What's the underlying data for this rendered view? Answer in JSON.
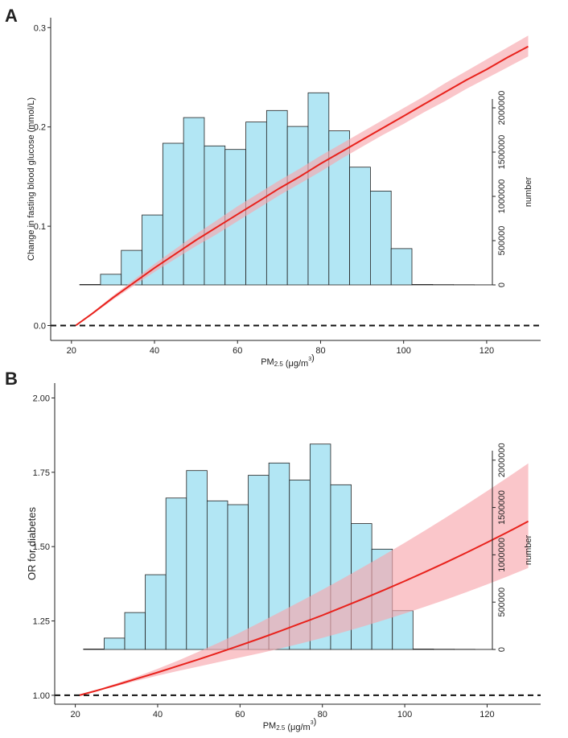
{
  "chart_data": [
    {
      "panel": "A",
      "type": "line",
      "overlay_type": "bar",
      "xlabel_main": "PM",
      "xlabel_sub": "2.5",
      "xlabel_unit": " (μg/m",
      "xlabel_sup": "3",
      "xlabel_close": ")",
      "ylabel": "Change in fasting blood glucose (mmol/L)",
      "y2label": "number",
      "xlim": [
        15,
        133
      ],
      "ylim": [
        -0.015,
        0.31
      ],
      "xticks": [
        "20",
        "40",
        "60",
        "80",
        "100",
        "120"
      ],
      "yticks": [
        "0.0",
        "0.1",
        "0.2",
        "0.3"
      ],
      "reference_line": 0,
      "line_color": "#e8221c",
      "band_color": "#f7a8ad",
      "curve_x": [
        21,
        25,
        30,
        35,
        40,
        45,
        50,
        55,
        60,
        65,
        70,
        75,
        80,
        85,
        90,
        95,
        100,
        105,
        110,
        115,
        120,
        125,
        130
      ],
      "curve_y": [
        0.0,
        0.012,
        0.028,
        0.043,
        0.058,
        0.072,
        0.086,
        0.099,
        0.112,
        0.125,
        0.138,
        0.15,
        0.163,
        0.175,
        0.187,
        0.199,
        0.211,
        0.223,
        0.235,
        0.247,
        0.258,
        0.27,
        0.281
      ],
      "curve_lo": [
        0.0,
        0.011,
        0.026,
        0.04,
        0.054,
        0.067,
        0.08,
        0.092,
        0.105,
        0.118,
        0.131,
        0.143,
        0.155,
        0.168,
        0.18,
        0.192,
        0.203,
        0.215,
        0.226,
        0.238,
        0.249,
        0.26,
        0.271
      ],
      "curve_hi": [
        0.0,
        0.013,
        0.03,
        0.046,
        0.062,
        0.077,
        0.092,
        0.106,
        0.12,
        0.133,
        0.146,
        0.158,
        0.171,
        0.183,
        0.195,
        0.207,
        0.219,
        0.231,
        0.244,
        0.256,
        0.268,
        0.28,
        0.292
      ],
      "histogram": {
        "bin_edges": [
          22,
          27,
          32,
          37,
          42,
          47,
          52,
          57,
          62,
          67,
          72,
          77,
          82,
          87,
          92,
          97,
          102,
          107,
          112,
          117,
          122
        ],
        "counts": [
          5000,
          120000,
          390000,
          790000,
          1600000,
          1890000,
          1570000,
          1530000,
          1840000,
          1970000,
          1790000,
          2170000,
          1740000,
          1330000,
          1060000,
          410000,
          5000,
          3000,
          2000,
          1000
        ],
        "y2lim": [
          0,
          2100000
        ],
        "y2ticks": [
          "0",
          "500000",
          "1000000",
          "1500000",
          "2000000"
        ],
        "fill_color": "#b2e6f4"
      }
    },
    {
      "panel": "B",
      "type": "line",
      "overlay_type": "bar",
      "xlabel_main": "PM",
      "xlabel_sub": "2.5",
      "xlabel_unit": " (μg/m",
      "xlabel_sup": "3",
      "xlabel_close": ")",
      "ylabel": "OR for diabetes",
      "y2label": "number",
      "xlim": [
        15,
        133
      ],
      "ylim": [
        0.97,
        2.05
      ],
      "xticks": [
        "20",
        "40",
        "60",
        "80",
        "100",
        "120"
      ],
      "yticks": [
        "1.00",
        "1.25",
        "1.50",
        "1.75",
        "2.00"
      ],
      "reference_line": 1,
      "line_color": "#e8221c",
      "band_color": "#f7a8ad",
      "curve_x": [
        21,
        25,
        30,
        35,
        40,
        45,
        50,
        55,
        60,
        65,
        70,
        75,
        80,
        85,
        90,
        95,
        100,
        105,
        110,
        115,
        120,
        125,
        130
      ],
      "curve_y": [
        1.0,
        1.015,
        1.035,
        1.056,
        1.077,
        1.099,
        1.121,
        1.144,
        1.168,
        1.192,
        1.217,
        1.243,
        1.269,
        1.297,
        1.325,
        1.354,
        1.384,
        1.415,
        1.447,
        1.48,
        1.514,
        1.549,
        1.585
      ],
      "curve_lo": [
        1.0,
        1.013,
        1.031,
        1.049,
        1.066,
        1.082,
        1.097,
        1.112,
        1.127,
        1.142,
        1.158,
        1.175,
        1.193,
        1.212,
        1.232,
        1.253,
        1.275,
        1.298,
        1.322,
        1.347,
        1.373,
        1.4,
        1.428
      ],
      "curve_hi": [
        1.0,
        1.017,
        1.04,
        1.063,
        1.089,
        1.117,
        1.147,
        1.178,
        1.211,
        1.246,
        1.282,
        1.318,
        1.355,
        1.393,
        1.432,
        1.472,
        1.513,
        1.555,
        1.598,
        1.642,
        1.687,
        1.733,
        1.78
      ],
      "histogram": {
        "bin_edges": [
          22,
          27,
          32,
          37,
          42,
          47,
          52,
          57,
          62,
          67,
          72,
          77,
          82,
          87,
          92,
          97,
          102,
          107,
          112,
          117,
          122
        ],
        "counts": [
          5000,
          120000,
          390000,
          790000,
          1600000,
          1890000,
          1570000,
          1530000,
          1840000,
          1970000,
          1790000,
          2170000,
          1740000,
          1330000,
          1060000,
          410000,
          5000,
          3000,
          2000,
          1000
        ],
        "y2lim": [
          0,
          2100000
        ],
        "y2ticks": [
          "0",
          "500000",
          "1000000",
          "1500000",
          "2000000"
        ],
        "fill_color": "#b2e6f4"
      }
    }
  ]
}
